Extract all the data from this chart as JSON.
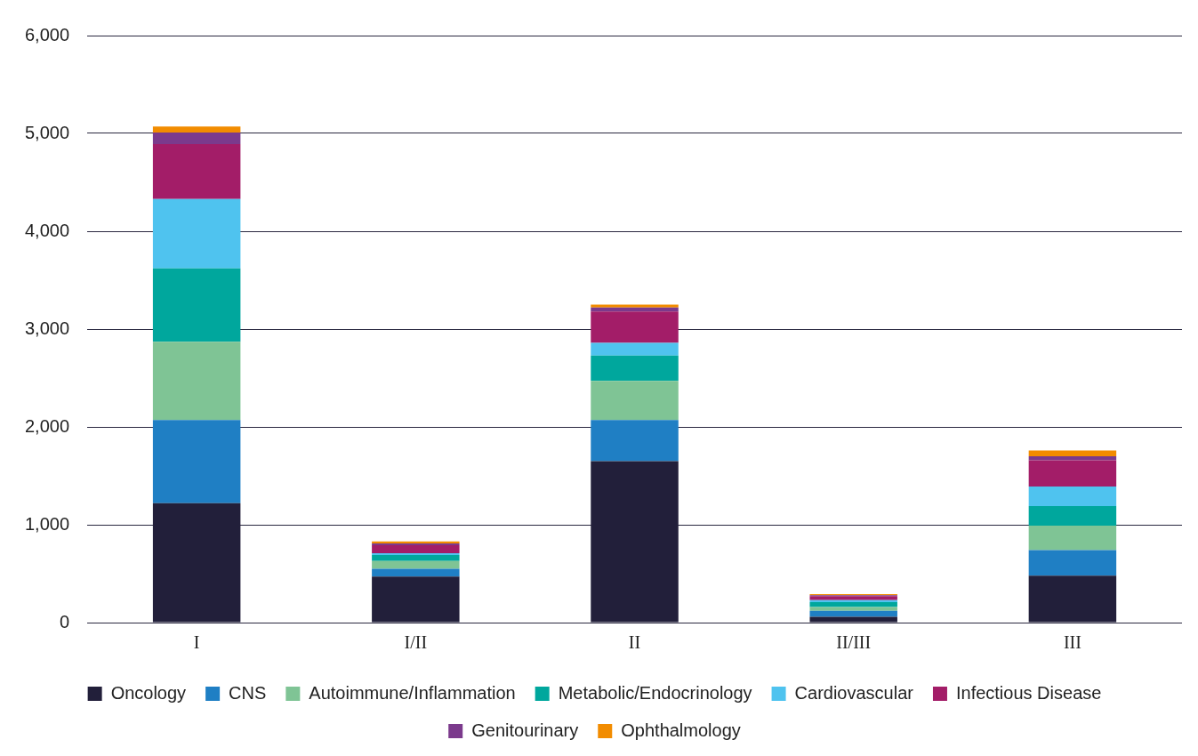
{
  "chart_data": {
    "type": "bar",
    "stacked": true,
    "categories": [
      "I",
      "I/II",
      "II",
      "II/III",
      "III"
    ],
    "series": [
      {
        "name": "Oncology",
        "color": "#221f3a",
        "values": [
          1220,
          470,
          1650,
          60,
          480
        ]
      },
      {
        "name": "CNS",
        "color": "#1f7fc4",
        "values": [
          850,
          80,
          420,
          60,
          260
        ]
      },
      {
        "name": "Autoimmune/Inflammation",
        "color": "#7fc495",
        "values": [
          800,
          80,
          400,
          40,
          250
        ]
      },
      {
        "name": "Metabolic/Endocrinology",
        "color": "#00a79d",
        "values": [
          750,
          60,
          260,
          50,
          200
        ]
      },
      {
        "name": "Cardiovascular",
        "color": "#4fc3ef",
        "values": [
          710,
          20,
          130,
          20,
          200
        ]
      },
      {
        "name": "Infectious Disease",
        "color": "#a31d68",
        "values": [
          560,
          80,
          320,
          40,
          270
        ]
      },
      {
        "name": "Genitourinary",
        "color": "#7b3a8c",
        "values": [
          120,
          20,
          40,
          10,
          40
        ]
      },
      {
        "name": "Ophthalmology",
        "color": "#f28c00",
        "values": [
          60,
          20,
          30,
          10,
          60
        ]
      }
    ],
    "ylim": [
      0,
      6000
    ],
    "yticks": [
      0,
      {
        "value": 1000,
        "label": "1,000"
      },
      {
        "value": 2000,
        "label": "2,000"
      },
      {
        "value": 3000,
        "label": "3,000"
      },
      {
        "value": 4000,
        "label": "4,000"
      },
      {
        "value": 5000,
        "label": "5,000"
      },
      {
        "value": 6000,
        "label": "6,000"
      }
    ],
    "grid": "y",
    "legend": "bottom"
  }
}
